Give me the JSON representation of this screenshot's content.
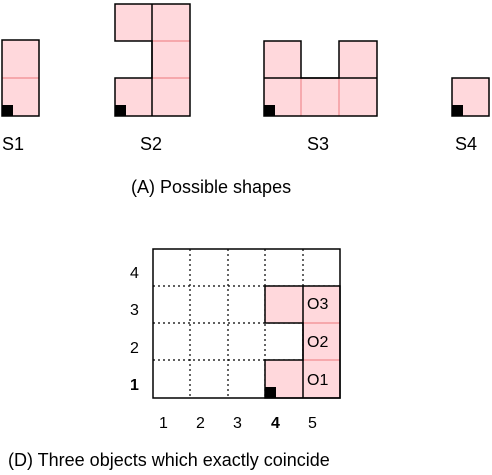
{
  "panel_a": {
    "caption": "(A) Possible shapes",
    "shapes": [
      {
        "label": "S1"
      },
      {
        "label": "S2"
      },
      {
        "label": "S3"
      },
      {
        "label": "S4"
      }
    ]
  },
  "panel_d": {
    "caption": "(D) Three objects which exactly coincide",
    "x_ticks": [
      "1",
      "2",
      "3",
      "4",
      "5"
    ],
    "y_ticks": [
      "1",
      "2",
      "3",
      "4"
    ],
    "bold_x_tick": "4",
    "bold_y_tick": "1",
    "objects": [
      {
        "label": "O1"
      },
      {
        "label": "O2"
      },
      {
        "label": "O3"
      }
    ]
  },
  "colors": {
    "cell_fill": "#ffd8dc",
    "inner_line": "#f08a90",
    "outline": "#000000",
    "origin_marker": "#000000"
  }
}
